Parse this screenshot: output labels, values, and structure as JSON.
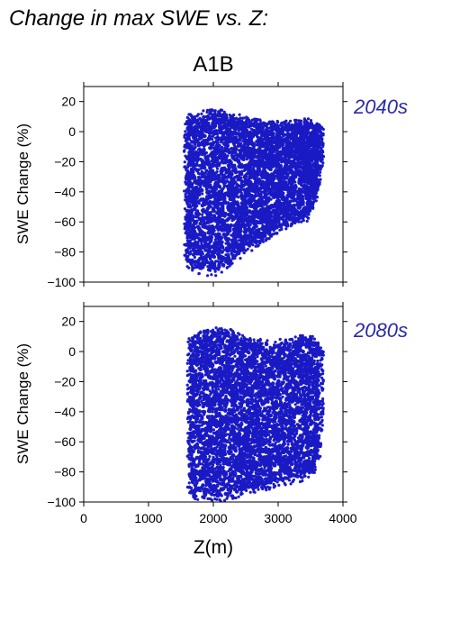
{
  "page_title": "Change in max SWE vs. Z:",
  "colors": {
    "points": "#1a1ac4",
    "period_label": "#2a2aa8",
    "axis": "#000000"
  },
  "chart_data": [
    {
      "type": "scatter",
      "title": "A1B",
      "period_label": "2040s",
      "xlabel": "Z(m)",
      "ylabel": "SWE Change (%)",
      "xlim": [
        0,
        4000
      ],
      "ylim": [
        -100,
        30
      ],
      "xticks": [
        0,
        1000,
        2000,
        3000,
        4000
      ],
      "yticks": [
        -100,
        -80,
        -60,
        -40,
        -20,
        0,
        20
      ],
      "grid": false,
      "envelope": [
        {
          "z": 1550,
          "upper": 10,
          "lower": -88
        },
        {
          "z": 1650,
          "upper": 12,
          "lower": -92
        },
        {
          "z": 1800,
          "upper": 14,
          "lower": -95
        },
        {
          "z": 1950,
          "upper": 15,
          "lower": -97
        },
        {
          "z": 2100,
          "upper": 15,
          "lower": -95
        },
        {
          "z": 2300,
          "upper": 13,
          "lower": -88
        },
        {
          "z": 2500,
          "upper": 10,
          "lower": -82
        },
        {
          "z": 2700,
          "upper": 8,
          "lower": -76
        },
        {
          "z": 2900,
          "upper": 7,
          "lower": -70
        },
        {
          "z": 3100,
          "upper": 7,
          "lower": -65
        },
        {
          "z": 3300,
          "upper": 8,
          "lower": -62
        },
        {
          "z": 3450,
          "upper": 9,
          "lower": -60
        },
        {
          "z": 3600,
          "upper": 6,
          "lower": -45
        },
        {
          "z": 3700,
          "upper": 3,
          "lower": -20
        }
      ]
    },
    {
      "type": "scatter",
      "title": "",
      "period_label": "2080s",
      "xlabel": "Z(m)",
      "ylabel": "SWE Change (%)",
      "xlim": [
        0,
        4000
      ],
      "ylim": [
        -100,
        30
      ],
      "xticks": [
        0,
        1000,
        2000,
        3000,
        4000
      ],
      "yticks": [
        -100,
        -80,
        -60,
        -40,
        -20,
        0,
        20
      ],
      "xticklabels": [
        "0",
        "1000",
        "2000",
        "3000",
        "4000"
      ],
      "grid": false,
      "envelope": [
        {
          "z": 1600,
          "upper": 9,
          "lower": -98
        },
        {
          "z": 1750,
          "upper": 13,
          "lower": -99
        },
        {
          "z": 1900,
          "upper": 15,
          "lower": -100
        },
        {
          "z": 2050,
          "upper": 16,
          "lower": -100
        },
        {
          "z": 2200,
          "upper": 16,
          "lower": -99
        },
        {
          "z": 2400,
          "upper": 12,
          "lower": -97
        },
        {
          "z": 2600,
          "upper": 9,
          "lower": -95
        },
        {
          "z": 2800,
          "upper": 8,
          "lower": -93
        },
        {
          "z": 3000,
          "upper": 8,
          "lower": -90
        },
        {
          "z": 3200,
          "upper": 9,
          "lower": -88
        },
        {
          "z": 3400,
          "upper": 12,
          "lower": -86
        },
        {
          "z": 3550,
          "upper": 10,
          "lower": -82
        },
        {
          "z": 3650,
          "upper": 5,
          "lower": -70
        },
        {
          "z": 3700,
          "upper": 0,
          "lower": -40
        }
      ]
    }
  ]
}
